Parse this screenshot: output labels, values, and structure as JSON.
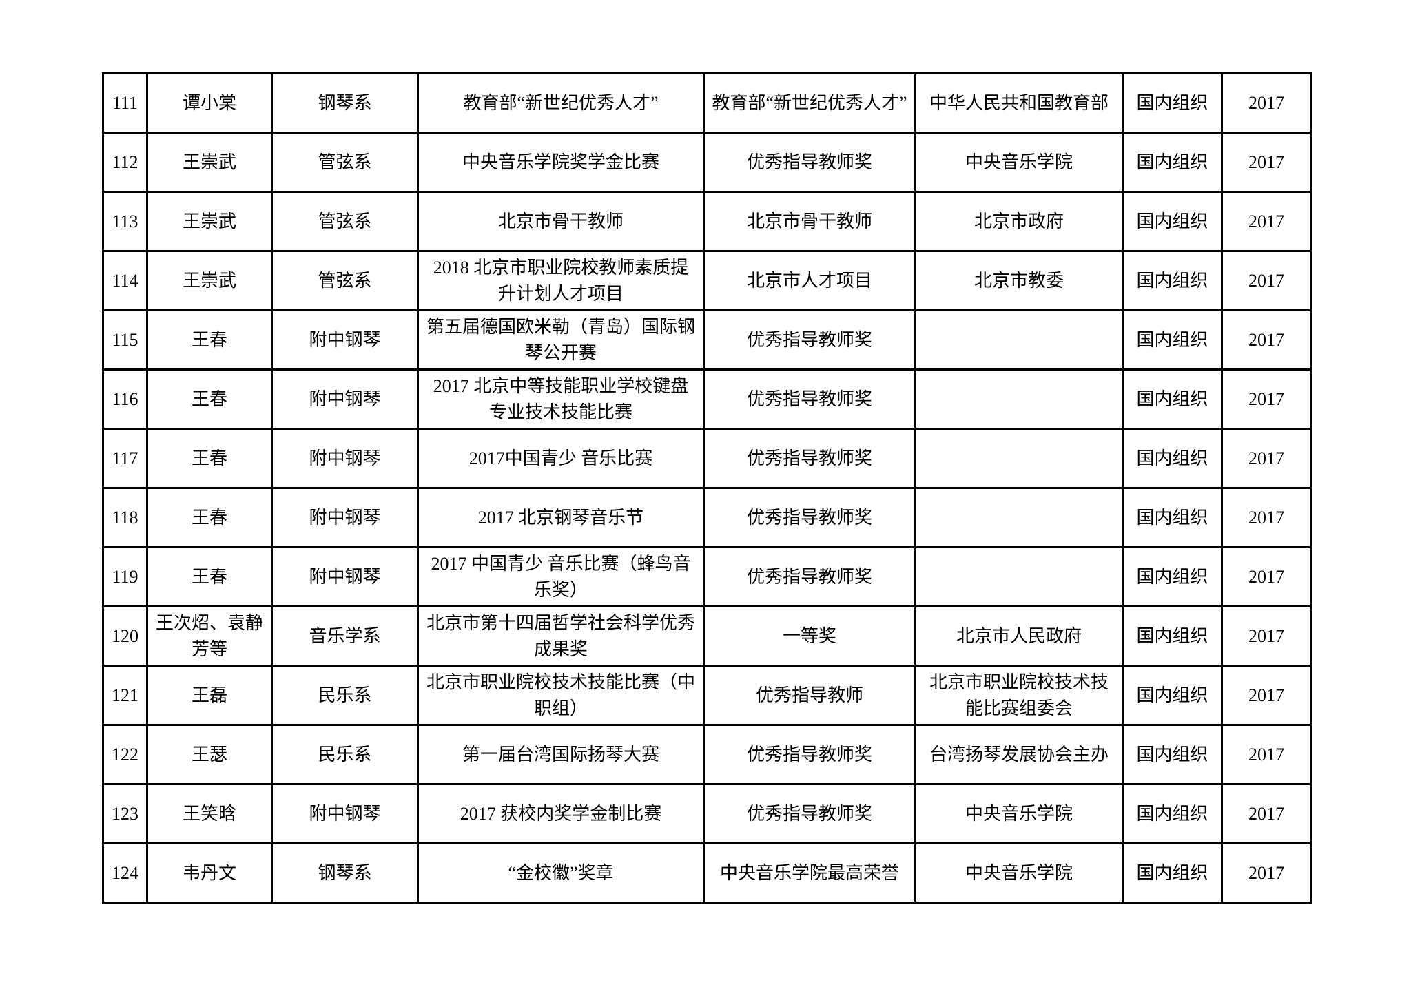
{
  "styles": {
    "background_color": "#ffffff",
    "border_color": "#000000",
    "text_color": "#000000"
  },
  "table": {
    "type": "table",
    "column_keys": [
      "row_no",
      "name",
      "department",
      "award_name",
      "award_level",
      "organization",
      "org_type",
      "year"
    ],
    "rows": [
      [
        "111",
        "谭小棠",
        "钢琴系",
        "教育部“新世纪优秀人才”",
        "教育部“新世纪优秀人才”",
        "中华人民共和国教育部",
        "国内组织",
        "2017"
      ],
      [
        "112",
        "王崇武",
        "管弦系",
        "中央音乐学院奖学金比赛",
        "优秀指导教师奖",
        "中央音乐学院",
        "国内组织",
        "2017"
      ],
      [
        "113",
        "王崇武",
        "管弦系",
        "北京市骨干教师",
        "北京市骨干教师",
        "北京市政府",
        "国内组织",
        "2017"
      ],
      [
        "114",
        "王崇武",
        "管弦系",
        "2018 北京市职业院校教师素质提升计划人才项目",
        "北京市人才项目",
        "北京市教委",
        "国内组织",
        "2017"
      ],
      [
        "115",
        "王春",
        "附中钢琴",
        "第五届德国欧米勒（青岛）国际钢琴公开赛",
        "优秀指导教师奖",
        "",
        "国内组织",
        "2017"
      ],
      [
        "116",
        "王春",
        "附中钢琴",
        "2017 北京中等技能职业学校键盘专业技术技能比赛",
        "优秀指导教师奖",
        "",
        "国内组织",
        "2017"
      ],
      [
        "117",
        "王春",
        "附中钢琴",
        "2017中国青少 音乐比赛",
        "优秀指导教师奖",
        "",
        "国内组织",
        "2017"
      ],
      [
        "118",
        "王春",
        "附中钢琴",
        "2017 北京钢琴音乐节",
        "优秀指导教师奖",
        "",
        "国内组织",
        "2017"
      ],
      [
        "119",
        "王春",
        "附中钢琴",
        "2017 中国青少 音乐比赛（蜂鸟音乐奖）",
        "优秀指导教师奖",
        "",
        "国内组织",
        "2017"
      ],
      [
        "120",
        "王次炤、袁静芳等",
        "音乐学系",
        "北京市第十四届哲学社会科学优秀成果奖",
        "一等奖",
        "北京市人民政府",
        "国内组织",
        "2017"
      ],
      [
        "121",
        "王磊",
        "民乐系",
        "北京市职业院校技术技能比赛（中职组）",
        "优秀指导教师",
        "北京市职业院校技术技能比赛组委会",
        "国内组织",
        "2017"
      ],
      [
        "122",
        "王瑟",
        "民乐系",
        "第一届台湾国际扬琴大赛",
        "优秀指导教师奖",
        "台湾扬琴发展协会主办",
        "国内组织",
        "2017"
      ],
      [
        "123",
        "王笑晗",
        "附中钢琴",
        "2017 获校内奖学金制比赛",
        "优秀指导教师奖",
        "中央音乐学院",
        "国内组织",
        "2017"
      ],
      [
        "124",
        "韦丹文",
        "钢琴系",
        "“金校徽”奖章",
        "中央音乐学院最高荣誉",
        "中央音乐学院",
        "国内组织",
        "2017"
      ]
    ]
  }
}
